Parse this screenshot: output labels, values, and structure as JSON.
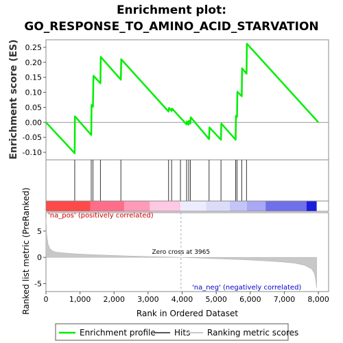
{
  "chart_data": {
    "type": "line",
    "title_line1": "Enrichment plot:",
    "title_line2": "GO_RESPONSE_TO_AMINO_ACID_STARVATION",
    "es_ylabel": "Enrichment score (ES)",
    "metric_ylabel": "Ranked list metric (PreRanked)",
    "xlabel": "Rank in Ordered Dataset",
    "xlim": [
      0,
      8300
    ],
    "es_ylim": [
      -0.125,
      0.275
    ],
    "metric_ylim": [
      -6.5,
      8.5
    ],
    "x_ticks": [
      0,
      1000,
      2000,
      3000,
      4000,
      5000,
      6000,
      7000,
      8000
    ],
    "x_tick_labels": [
      "0",
      "1,000",
      "2,000",
      "3,000",
      "4,000",
      "5,000",
      "6,000",
      "7,000",
      "8,000"
    ],
    "es_ticks": [
      -0.1,
      -0.05,
      0.0,
      0.05,
      0.1,
      0.15,
      0.2,
      0.25
    ],
    "es_tick_labels": [
      "-0.10",
      "-0.05",
      "0.00",
      "0.05",
      "0.10",
      "0.15",
      "0.20",
      "0.25"
    ],
    "metric_ticks": [
      -5,
      0,
      5
    ],
    "metric_tick_labels": [
      "-5",
      "0",
      "5"
    ],
    "enrichment_profile": {
      "x": [
        0,
        845,
        850,
        1330,
        1340,
        1380,
        1395,
        1600,
        1610,
        2200,
        2210,
        3600,
        3615,
        3690,
        3700,
        4130,
        4140,
        4190,
        4200,
        4240,
        4250,
        4790,
        4800,
        5140,
        5150,
        5570,
        5580,
        5610,
        5620,
        5750,
        5760,
        5890,
        5900,
        8000
      ],
      "y": [
        0.0,
        -0.103,
        0.02,
        -0.042,
        0.058,
        0.052,
        0.155,
        0.13,
        0.218,
        0.142,
        0.21,
        0.036,
        0.048,
        0.038,
        0.046,
        -0.007,
        0.003,
        -0.008,
        0.005,
        -0.004,
        0.017,
        -0.056,
        -0.017,
        -0.058,
        -0.004,
        -0.058,
        0.022,
        0.018,
        0.102,
        0.087,
        0.18,
        0.162,
        0.262,
        0.0
      ]
    },
    "hits": [
      845,
      1330,
      1380,
      1600,
      2200,
      3600,
      3690,
      3950,
      4130,
      4190,
      4240,
      4790,
      5140,
      5570,
      5610,
      5750,
      5890
    ],
    "zero_cross": 3965,
    "zero_cross_label": "Zero cross at 3965",
    "pos_label": "'na_pos' (positively correlated)",
    "neg_label": "'na_neg' (negatively correlated)",
    "heatmap_segments": [
      {
        "start": 0,
        "end": 1300,
        "color": "#ff4a4a"
      },
      {
        "start": 1300,
        "end": 2300,
        "color": "#ff6e88"
      },
      {
        "start": 2300,
        "end": 3050,
        "color": "#ff9ab8"
      },
      {
        "start": 3050,
        "end": 3950,
        "color": "#ffc8e4"
      },
      {
        "start": 3950,
        "end": 4700,
        "color": "#ececff"
      },
      {
        "start": 4700,
        "end": 5400,
        "color": "#dcdcfa"
      },
      {
        "start": 5400,
        "end": 5900,
        "color": "#c4c4f8"
      },
      {
        "start": 5900,
        "end": 6450,
        "color": "#a8a8f4"
      },
      {
        "start": 6450,
        "end": 7650,
        "color": "#7070e8"
      },
      {
        "start": 7650,
        "end": 7950,
        "color": "#1c1cdc"
      }
    ],
    "metric_profile": {
      "x": [
        0,
        20,
        60,
        120,
        200,
        300,
        500,
        800,
        1200,
        1800,
        2500,
        3200,
        3965,
        4600,
        5200,
        5800,
        6400,
        6900,
        7300,
        7600,
        7800,
        7880,
        7920,
        7950
      ],
      "y": [
        7.5,
        4.5,
        2.5,
        1.6,
        1.2,
        1.0,
        0.85,
        0.7,
        0.55,
        0.4,
        0.25,
        0.12,
        0.0,
        -0.15,
        -0.3,
        -0.45,
        -0.65,
        -0.85,
        -1.1,
        -1.5,
        -2.2,
        -3.0,
        -4.2,
        -5.8
      ]
    },
    "legend": [
      {
        "label": "Enrichment profile",
        "color": "#00ee00"
      },
      {
        "label": "Hits",
        "color": "#555555"
      },
      {
        "label": "Ranking metric scores",
        "color": "#c8c8c8"
      }
    ]
  }
}
